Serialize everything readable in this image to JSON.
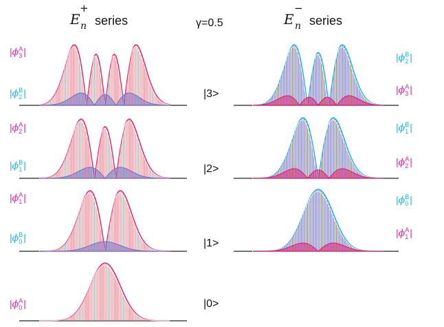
{
  "headers": {
    "left": {
      "symbol": "E",
      "superscript": "+",
      "subscript": "n",
      "text": "series"
    },
    "right": {
      "symbol": "E",
      "superscript": "−",
      "subscript": "n",
      "text": "series"
    },
    "gamma": "γ=0.5"
  },
  "states": [
    "|3>",
    "|2>",
    "|1>",
    "|0>"
  ],
  "labels": {
    "left": [
      {
        "big": {
          "letter": "ϕ",
          "sup": "A",
          "sub": "3"
        },
        "small": {
          "letter": "ϕ",
          "sup": "B",
          "sub": "2"
        }
      },
      {
        "big": {
          "letter": "ϕ",
          "sup": "A",
          "sub": "2"
        },
        "small": {
          "letter": "ϕ",
          "sup": "B",
          "sub": "1"
        }
      },
      {
        "big": {
          "letter": "ϕ",
          "sup": "A",
          "sub": "1"
        },
        "small": {
          "letter": "ϕ",
          "sup": "B",
          "sub": "0"
        }
      },
      {
        "big": {
          "letter": "ϕ",
          "sup": "A",
          "sub": "0"
        },
        "small": null
      }
    ],
    "right": [
      {
        "big": {
          "letter": "ϕ",
          "sup": "B",
          "sub": "2"
        },
        "small": {
          "letter": "ϕ",
          "sup": "A",
          "sub": "3"
        }
      },
      {
        "big": {
          "letter": "ϕ",
          "sup": "B",
          "sub": "1"
        },
        "small": {
          "letter": "ϕ",
          "sup": "A",
          "sub": "2"
        }
      },
      {
        "big": {
          "letter": "ϕ",
          "sup": "B",
          "sub": "0"
        },
        "small": {
          "letter": "ϕ",
          "sup": "A",
          "sub": "1"
        }
      }
    ]
  },
  "colors": {
    "red_fill": "#f08a94",
    "red_line": "#e0206a",
    "blue_fill": "#7272c4",
    "blue_line": "#22b4d8",
    "pink_label": "#e8209a",
    "cyan_label": "#19b6dc"
  }
}
